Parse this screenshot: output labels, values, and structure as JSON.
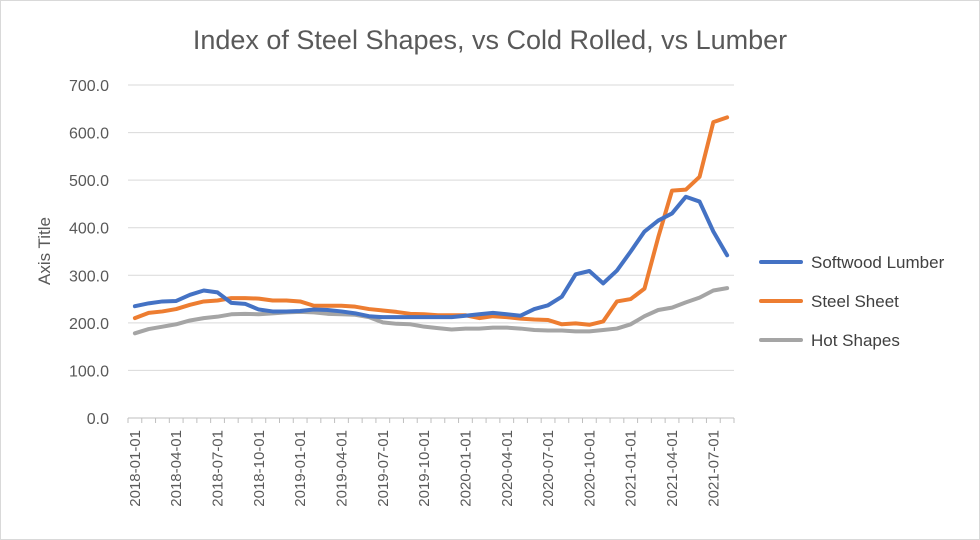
{
  "chart_data": {
    "type": "line",
    "title": "Index of Steel Shapes, vs Cold Rolled, vs Lumber",
    "ylabel": "Axis Title",
    "xlabel": "",
    "ylim": [
      0,
      700
    ],
    "yticks": [
      "0.0",
      "100.0",
      "200.0",
      "300.0",
      "400.0",
      "500.0",
      "600.0",
      "700.0"
    ],
    "ytick_values": [
      0,
      100,
      200,
      300,
      400,
      500,
      600,
      700
    ],
    "x": [
      "2018-01-01",
      "2018-02-01",
      "2018-03-01",
      "2018-04-01",
      "2018-05-01",
      "2018-06-01",
      "2018-07-01",
      "2018-08-01",
      "2018-09-01",
      "2018-10-01",
      "2018-11-01",
      "2018-12-01",
      "2019-01-01",
      "2019-02-01",
      "2019-03-01",
      "2019-04-01",
      "2019-05-01",
      "2019-06-01",
      "2019-07-01",
      "2019-08-01",
      "2019-09-01",
      "2019-10-01",
      "2019-11-01",
      "2019-12-01",
      "2020-01-01",
      "2020-02-01",
      "2020-03-01",
      "2020-04-01",
      "2020-05-01",
      "2020-06-01",
      "2020-07-01",
      "2020-08-01",
      "2020-09-01",
      "2020-10-01",
      "2020-11-01",
      "2020-12-01",
      "2021-01-01",
      "2021-02-01",
      "2021-03-01",
      "2021-04-01",
      "2021-05-01",
      "2021-06-01",
      "2021-07-01",
      "2021-08-01"
    ],
    "xtick_labels": [
      "2018-01-01",
      "2018-04-01",
      "2018-07-01",
      "2018-10-01",
      "2019-01-01",
      "2019-04-01",
      "2019-07-01",
      "2019-10-01",
      "2020-01-01",
      "2020-04-01",
      "2020-07-01",
      "2020-10-01",
      "2021-01-01",
      "2021-04-01",
      "2021-07-01"
    ],
    "grid": true,
    "legend_position": "right",
    "series": [
      {
        "name": "Softwood Lumber",
        "color": "#4472c4",
        "values": [
          235,
          241,
          245,
          246,
          259,
          268,
          264,
          242,
          240,
          228,
          224,
          224,
          225,
          228,
          227,
          224,
          220,
          214,
          212,
          212,
          212,
          212,
          212,
          212,
          215,
          218,
          221,
          218,
          215,
          229,
          237,
          255,
          302,
          309,
          283,
          310,
          350,
          392,
          415,
          430,
          465,
          455,
          392,
          342
        ]
      },
      {
        "name": "Steel Sheet",
        "color": "#ed7d31",
        "values": [
          210,
          221,
          224,
          229,
          238,
          245,
          247,
          252,
          252,
          251,
          247,
          247,
          245,
          236,
          236,
          236,
          234,
          229,
          226,
          223,
          219,
          218,
          216,
          216,
          216,
          210,
          214,
          212,
          209,
          207,
          206,
          197,
          199,
          196,
          203,
          245,
          250,
          272,
          380,
          478,
          480,
          507,
          622,
          632
        ]
      },
      {
        "name": "Hot Shapes",
        "color": "#a5a5a5",
        "values": [
          178,
          187,
          192,
          197,
          205,
          210,
          213,
          218,
          219,
          218,
          220,
          222,
          223,
          222,
          219,
          218,
          217,
          212,
          201,
          198,
          197,
          192,
          189,
          186,
          188,
          188,
          190,
          190,
          188,
          185,
          184,
          184,
          182,
          182,
          185,
          188,
          197,
          214,
          227,
          232,
          243,
          253,
          268,
          273
        ]
      }
    ]
  }
}
